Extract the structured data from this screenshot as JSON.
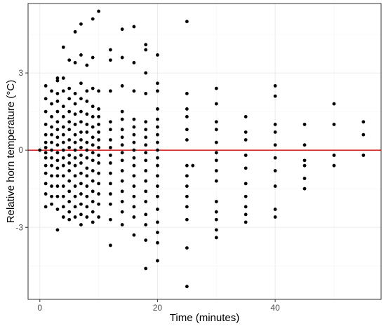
{
  "chart_data": {
    "type": "scatter",
    "title": "",
    "xlabel": "Time (minutes)",
    "ylabel": "Relative horn temperature (°C)",
    "xlim": [
      -2,
      58
    ],
    "ylim": [
      -5.8,
      5.7
    ],
    "x_ticks": [
      0,
      20,
      40
    ],
    "y_ticks": [
      -3,
      0,
      3
    ],
    "x_tick_labels": [
      "0",
      "20",
      "40"
    ],
    "y_tick_labels": [
      "-3",
      "0",
      "3"
    ],
    "grid": true,
    "reference_line": {
      "y": 0,
      "color": "#cc0000"
    },
    "point_color": "#000000",
    "series": [
      {
        "points": [
          [
            0,
            0
          ],
          [
            1,
            2.5
          ],
          [
            1,
            2.0
          ],
          [
            1,
            1.5
          ],
          [
            1,
            1.0
          ],
          [
            1,
            0.6
          ],
          [
            1,
            0.3
          ],
          [
            1,
            0.1
          ],
          [
            1,
            -0.1
          ],
          [
            1,
            -0.3
          ],
          [
            1,
            -0.6
          ],
          [
            1,
            -0.9
          ],
          [
            1,
            -1.3
          ],
          [
            1,
            -1.7
          ],
          [
            1,
            -2.2
          ],
          [
            2,
            2.3
          ],
          [
            2,
            1.8
          ],
          [
            2,
            1.3
          ],
          [
            2,
            0.9
          ],
          [
            2,
            0.6
          ],
          [
            2,
            0.3
          ],
          [
            2,
            0.0
          ],
          [
            2,
            -0.3
          ],
          [
            2,
            -0.6
          ],
          [
            2,
            -1.0
          ],
          [
            2,
            -1.4
          ],
          [
            2,
            -1.8
          ],
          [
            2,
            -2.1
          ],
          [
            3,
            2.8
          ],
          [
            3,
            2.7
          ],
          [
            3,
            2.2
          ],
          [
            3,
            1.9
          ],
          [
            3,
            1.5
          ],
          [
            3,
            1.1
          ],
          [
            3,
            0.8
          ],
          [
            3,
            0.5
          ],
          [
            3,
            0.2
          ],
          [
            3,
            -0.1
          ],
          [
            3,
            -0.4
          ],
          [
            3,
            -0.7
          ],
          [
            3,
            -1.0
          ],
          [
            3,
            -1.4
          ],
          [
            3,
            -1.8
          ],
          [
            3,
            -2.3
          ],
          [
            3,
            -3.1
          ],
          [
            4,
            4.0
          ],
          [
            4,
            2.8
          ],
          [
            4,
            2.3
          ],
          [
            4,
            1.7
          ],
          [
            4,
            1.3
          ],
          [
            4,
            0.9
          ],
          [
            4,
            0.6
          ],
          [
            4,
            0.3
          ],
          [
            4,
            0.0
          ],
          [
            4,
            -0.3
          ],
          [
            4,
            -0.6
          ],
          [
            4,
            -1.0
          ],
          [
            4,
            -1.4
          ],
          [
            4,
            -1.8
          ],
          [
            4,
            -2.2
          ],
          [
            4,
            -2.6
          ],
          [
            5,
            3.5
          ],
          [
            5,
            2.4
          ],
          [
            5,
            2.0
          ],
          [
            5,
            1.5
          ],
          [
            5,
            1.1
          ],
          [
            5,
            0.8
          ],
          [
            5,
            0.4
          ],
          [
            5,
            0.1
          ],
          [
            5,
            -0.2
          ],
          [
            5,
            -0.5
          ],
          [
            5,
            -0.8
          ],
          [
            5,
            -1.2
          ],
          [
            5,
            -1.6
          ],
          [
            5,
            -2.0
          ],
          [
            5,
            -2.4
          ],
          [
            5,
            -2.7
          ],
          [
            6,
            4.6
          ],
          [
            6,
            3.4
          ],
          [
            6,
            2.2
          ],
          [
            6,
            1.8
          ],
          [
            6,
            1.4
          ],
          [
            6,
            1.0
          ],
          [
            6,
            0.6
          ],
          [
            6,
            0.3
          ],
          [
            6,
            0.0
          ],
          [
            6,
            -0.3
          ],
          [
            6,
            -0.6
          ],
          [
            6,
            -1.0
          ],
          [
            6,
            -1.4
          ],
          [
            6,
            -1.8
          ],
          [
            6,
            -2.2
          ],
          [
            6,
            -2.6
          ],
          [
            7,
            4.9
          ],
          [
            7,
            3.7
          ],
          [
            7,
            2.6
          ],
          [
            7,
            2.0
          ],
          [
            7,
            1.5
          ],
          [
            7,
            1.1
          ],
          [
            7,
            0.7
          ],
          [
            7,
            0.4
          ],
          [
            7,
            0.1
          ],
          [
            7,
            -0.2
          ],
          [
            7,
            -0.5
          ],
          [
            7,
            -0.9
          ],
          [
            7,
            -1.3
          ],
          [
            7,
            -1.7
          ],
          [
            7,
            -2.1
          ],
          [
            7,
            -2.5
          ],
          [
            7,
            -2.9
          ],
          [
            8,
            3.3
          ],
          [
            8,
            2.3
          ],
          [
            8,
            1.9
          ],
          [
            8,
            1.4
          ],
          [
            8,
            1.0
          ],
          [
            8,
            0.7
          ],
          [
            8,
            0.3
          ],
          [
            8,
            0.0
          ],
          [
            8,
            -0.3
          ],
          [
            8,
            -0.7
          ],
          [
            8,
            -1.0
          ],
          [
            8,
            -1.4
          ],
          [
            8,
            -1.8
          ],
          [
            8,
            -2.2
          ],
          [
            8,
            -2.6
          ],
          [
            9,
            5.1
          ],
          [
            9,
            3.6
          ],
          [
            9,
            2.4
          ],
          [
            9,
            1.7
          ],
          [
            9,
            1.3
          ],
          [
            9,
            0.9
          ],
          [
            9,
            0.5
          ],
          [
            9,
            0.2
          ],
          [
            9,
            -0.1
          ],
          [
            9,
            -0.4
          ],
          [
            9,
            -0.8
          ],
          [
            9,
            -1.2
          ],
          [
            9,
            -1.6
          ],
          [
            9,
            -2.0
          ],
          [
            9,
            -2.4
          ],
          [
            9,
            -2.8
          ],
          [
            10,
            5.4
          ],
          [
            10,
            2.3
          ],
          [
            10,
            1.6
          ],
          [
            10,
            1.3
          ],
          [
            10,
            1.0
          ],
          [
            10,
            0.7
          ],
          [
            10,
            0.4
          ],
          [
            10,
            0.1
          ],
          [
            10,
            -0.2
          ],
          [
            10,
            -0.5
          ],
          [
            10,
            -0.9
          ],
          [
            10,
            -1.3
          ],
          [
            10,
            -1.7
          ],
          [
            10,
            -2.1
          ],
          [
            10,
            -2.6
          ],
          [
            12,
            3.9
          ],
          [
            12,
            3.5
          ],
          [
            12,
            2.3
          ],
          [
            12,
            1.1
          ],
          [
            12,
            0.8
          ],
          [
            12,
            0.4
          ],
          [
            12,
            0.1
          ],
          [
            12,
            -0.2
          ],
          [
            12,
            -0.5
          ],
          [
            12,
            -0.9
          ],
          [
            12,
            -1.3
          ],
          [
            12,
            -1.7
          ],
          [
            12,
            -2.1
          ],
          [
            12,
            -2.7
          ],
          [
            12,
            -3.7
          ],
          [
            14,
            4.7
          ],
          [
            14,
            3.6
          ],
          [
            14,
            2.5
          ],
          [
            14,
            1.5
          ],
          [
            14,
            1.2
          ],
          [
            14,
            0.8
          ],
          [
            14,
            0.5
          ],
          [
            14,
            0.2
          ],
          [
            14,
            -0.1
          ],
          [
            14,
            -0.4
          ],
          [
            14,
            -0.8
          ],
          [
            14,
            -1.2
          ],
          [
            14,
            -1.6
          ],
          [
            14,
            -2.0
          ],
          [
            14,
            -2.4
          ],
          [
            14,
            -2.9
          ],
          [
            16,
            4.8
          ],
          [
            16,
            3.4
          ],
          [
            16,
            2.3
          ],
          [
            16,
            1.2
          ],
          [
            16,
            0.9
          ],
          [
            16,
            0.6
          ],
          [
            16,
            0.3
          ],
          [
            16,
            0.0
          ],
          [
            16,
            -0.3
          ],
          [
            16,
            -0.6
          ],
          [
            16,
            -1.0
          ],
          [
            16,
            -1.4
          ],
          [
            16,
            -1.8
          ],
          [
            16,
            -2.2
          ],
          [
            16,
            -2.6
          ],
          [
            16,
            -3.3
          ],
          [
            18,
            4.1
          ],
          [
            18,
            3.9
          ],
          [
            18,
            3.0
          ],
          [
            18,
            2.2
          ],
          [
            18,
            1.1
          ],
          [
            18,
            0.8
          ],
          [
            18,
            0.5
          ],
          [
            18,
            0.2
          ],
          [
            18,
            -0.1
          ],
          [
            18,
            -0.4
          ],
          [
            18,
            -0.8
          ],
          [
            18,
            -1.2
          ],
          [
            18,
            -1.6
          ],
          [
            18,
            -2.0
          ],
          [
            18,
            -2.5
          ],
          [
            18,
            -2.9
          ],
          [
            18,
            -3.5
          ],
          [
            18,
            -4.6
          ],
          [
            20,
            3.7
          ],
          [
            20,
            2.6
          ],
          [
            20,
            2.3
          ],
          [
            20,
            1.6
          ],
          [
            20,
            1.2
          ],
          [
            20,
            0.9
          ],
          [
            20,
            0.6
          ],
          [
            20,
            0.3
          ],
          [
            20,
            0.0
          ],
          [
            20,
            -0.3
          ],
          [
            20,
            -0.6
          ],
          [
            20,
            -1.0
          ],
          [
            20,
            -1.4
          ],
          [
            20,
            -1.8
          ],
          [
            20,
            -2.3
          ],
          [
            20,
            -2.8
          ],
          [
            20,
            -3.2
          ],
          [
            20,
            -3.6
          ],
          [
            20,
            -4.3
          ],
          [
            25,
            5.0
          ],
          [
            25,
            2.2
          ],
          [
            25,
            1.6
          ],
          [
            25,
            1.3
          ],
          [
            25,
            0.8
          ],
          [
            25,
            0.4
          ],
          [
            25,
            -0.6
          ],
          [
            25,
            -1.0
          ],
          [
            25,
            -1.4
          ],
          [
            25,
            -1.8
          ],
          [
            25,
            -2.2
          ],
          [
            25,
            -2.7
          ],
          [
            25,
            -3.8
          ],
          [
            25,
            -5.3
          ],
          [
            26,
            -0.6
          ],
          [
            30,
            2.4
          ],
          [
            30,
            1.8
          ],
          [
            30,
            1.1
          ],
          [
            30,
            0.8
          ],
          [
            30,
            0.3
          ],
          [
            30,
            -0.1
          ],
          [
            30,
            -0.4
          ],
          [
            30,
            -0.8
          ],
          [
            30,
            -1.2
          ],
          [
            30,
            -2.0
          ],
          [
            30,
            -2.4
          ],
          [
            30,
            -2.7
          ],
          [
            30,
            -3.1
          ],
          [
            30,
            -3.4
          ],
          [
            35,
            1.3
          ],
          [
            35,
            0.7
          ],
          [
            35,
            0.4
          ],
          [
            35,
            -0.2
          ],
          [
            35,
            -0.7
          ],
          [
            35,
            -1.3
          ],
          [
            35,
            -1.8
          ],
          [
            35,
            -2.2
          ],
          [
            35,
            -2.5
          ],
          [
            35,
            -2.8
          ],
          [
            40,
            2.5
          ],
          [
            40,
            2.1
          ],
          [
            40,
            1.0
          ],
          [
            40,
            0.7
          ],
          [
            40,
            0.2
          ],
          [
            40,
            -0.3
          ],
          [
            40,
            -0.8
          ],
          [
            40,
            -1.4
          ],
          [
            40,
            -2.3
          ],
          [
            40,
            -2.6
          ],
          [
            45,
            1.0
          ],
          [
            45,
            0.2
          ],
          [
            45,
            -0.4
          ],
          [
            45,
            -0.6
          ],
          [
            45,
            -1.1
          ],
          [
            45,
            -1.5
          ],
          [
            50,
            1.8
          ],
          [
            50,
            1.0
          ],
          [
            50,
            -0.2
          ],
          [
            50,
            -0.6
          ],
          [
            55,
            1.1
          ],
          [
            55,
            0.6
          ],
          [
            55,
            -0.2
          ]
        ]
      }
    ]
  }
}
